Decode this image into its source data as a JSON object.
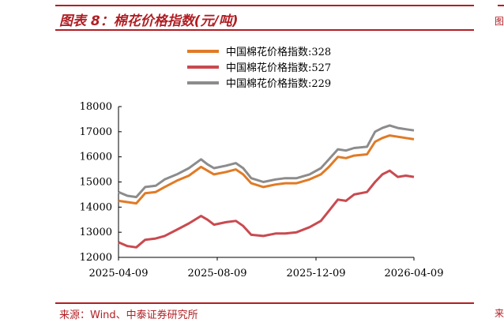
{
  "header": {
    "title": "图表 8：棉花价格指数(元/吨)",
    "side_fragment": "图"
  },
  "footer": {
    "source": "来源：Wind、中泰证券研究所",
    "side_fragment": "来"
  },
  "colors": {
    "accent": "#b11f24",
    "series_328": "#e07b26",
    "series_527": "#c94a50",
    "series_229": "#8c8c8c"
  },
  "chart_data": {
    "type": "line",
    "title": "",
    "xlabel": "",
    "ylabel": "",
    "ylim": [
      12000,
      18000
    ],
    "yticks": [
      12000,
      13000,
      14000,
      15000,
      16000,
      17000,
      18000
    ],
    "xlim": [
      "2025-04-09",
      "2026-04-09"
    ],
    "xticks": [
      "2025-04-09",
      "2025-08-09",
      "2025-12-09",
      "2026-04-09"
    ],
    "grid": false,
    "legend_position": "top",
    "series": [
      {
        "name": "中国棉花价格指数:328",
        "color": "#e07b26",
        "points": [
          [
            "2025-04-09",
            14250
          ],
          [
            "2025-04-20",
            14200
          ],
          [
            "2025-05-01",
            14150
          ],
          [
            "2025-05-12",
            14550
          ],
          [
            "2025-05-25",
            14600
          ],
          [
            "2025-06-05",
            14800
          ],
          [
            "2025-06-20",
            15050
          ],
          [
            "2025-07-05",
            15250
          ],
          [
            "2025-07-20",
            15600
          ],
          [
            "2025-07-28",
            15450
          ],
          [
            "2025-08-05",
            15300
          ],
          [
            "2025-08-20",
            15400
          ],
          [
            "2025-09-01",
            15500
          ],
          [
            "2025-09-10",
            15300
          ],
          [
            "2025-09-20",
            14950
          ],
          [
            "2025-10-05",
            14800
          ],
          [
            "2025-10-20",
            14900
          ],
          [
            "2025-11-01",
            14950
          ],
          [
            "2025-11-15",
            14950
          ],
          [
            "2025-12-01",
            15100
          ],
          [
            "2025-12-15",
            15300
          ],
          [
            "2025-12-25",
            15600
          ],
          [
            "2026-01-05",
            16000
          ],
          [
            "2026-01-15",
            15950
          ],
          [
            "2026-01-25",
            16050
          ],
          [
            "2026-02-10",
            16100
          ],
          [
            "2026-02-20",
            16600
          ],
          [
            "2026-03-01",
            16750
          ],
          [
            "2026-03-10",
            16850
          ],
          [
            "2026-03-20",
            16800
          ],
          [
            "2026-03-30",
            16750
          ],
          [
            "2026-04-09",
            16700
          ]
        ]
      },
      {
        "name": "中国棉花价格指数:527",
        "color": "#c94a50",
        "points": [
          [
            "2025-04-09",
            12600
          ],
          [
            "2025-04-20",
            12450
          ],
          [
            "2025-05-01",
            12400
          ],
          [
            "2025-05-12",
            12700
          ],
          [
            "2025-05-25",
            12750
          ],
          [
            "2025-06-05",
            12850
          ],
          [
            "2025-06-20",
            13100
          ],
          [
            "2025-07-05",
            13350
          ],
          [
            "2025-07-20",
            13650
          ],
          [
            "2025-07-28",
            13500
          ],
          [
            "2025-08-05",
            13300
          ],
          [
            "2025-08-20",
            13400
          ],
          [
            "2025-09-01",
            13450
          ],
          [
            "2025-09-10",
            13250
          ],
          [
            "2025-09-20",
            12900
          ],
          [
            "2025-10-05",
            12850
          ],
          [
            "2025-10-20",
            12950
          ],
          [
            "2025-11-01",
            12950
          ],
          [
            "2025-11-15",
            13000
          ],
          [
            "2025-12-01",
            13200
          ],
          [
            "2025-12-15",
            13450
          ],
          [
            "2025-12-25",
            13850
          ],
          [
            "2026-01-05",
            14300
          ],
          [
            "2026-01-15",
            14250
          ],
          [
            "2026-01-25",
            14500
          ],
          [
            "2026-02-10",
            14600
          ],
          [
            "2026-02-20",
            15000
          ],
          [
            "2026-03-01",
            15300
          ],
          [
            "2026-03-10",
            15450
          ],
          [
            "2026-03-20",
            15200
          ],
          [
            "2026-03-30",
            15250
          ],
          [
            "2026-04-09",
            15200
          ]
        ]
      },
      {
        "name": "中国棉花价格指数:229",
        "color": "#8c8c8c",
        "points": [
          [
            "2025-04-09",
            14600
          ],
          [
            "2025-04-20",
            14450
          ],
          [
            "2025-05-01",
            14400
          ],
          [
            "2025-05-12",
            14800
          ],
          [
            "2025-05-25",
            14850
          ],
          [
            "2025-06-05",
            15100
          ],
          [
            "2025-06-20",
            15300
          ],
          [
            "2025-07-05",
            15550
          ],
          [
            "2025-07-20",
            15900
          ],
          [
            "2025-07-28",
            15700
          ],
          [
            "2025-08-05",
            15550
          ],
          [
            "2025-08-20",
            15650
          ],
          [
            "2025-09-01",
            15750
          ],
          [
            "2025-09-10",
            15550
          ],
          [
            "2025-09-20",
            15150
          ],
          [
            "2025-10-05",
            15000
          ],
          [
            "2025-10-20",
            15100
          ],
          [
            "2025-11-01",
            15150
          ],
          [
            "2025-11-15",
            15150
          ],
          [
            "2025-12-01",
            15300
          ],
          [
            "2025-12-15",
            15550
          ],
          [
            "2025-12-25",
            15900
          ],
          [
            "2026-01-05",
            16300
          ],
          [
            "2026-01-15",
            16250
          ],
          [
            "2026-01-25",
            16350
          ],
          [
            "2026-02-10",
            16400
          ],
          [
            "2026-02-20",
            17000
          ],
          [
            "2026-03-01",
            17150
          ],
          [
            "2026-03-10",
            17250
          ],
          [
            "2026-03-20",
            17150
          ],
          [
            "2026-03-30",
            17100
          ],
          [
            "2026-04-09",
            17050
          ]
        ]
      }
    ]
  }
}
